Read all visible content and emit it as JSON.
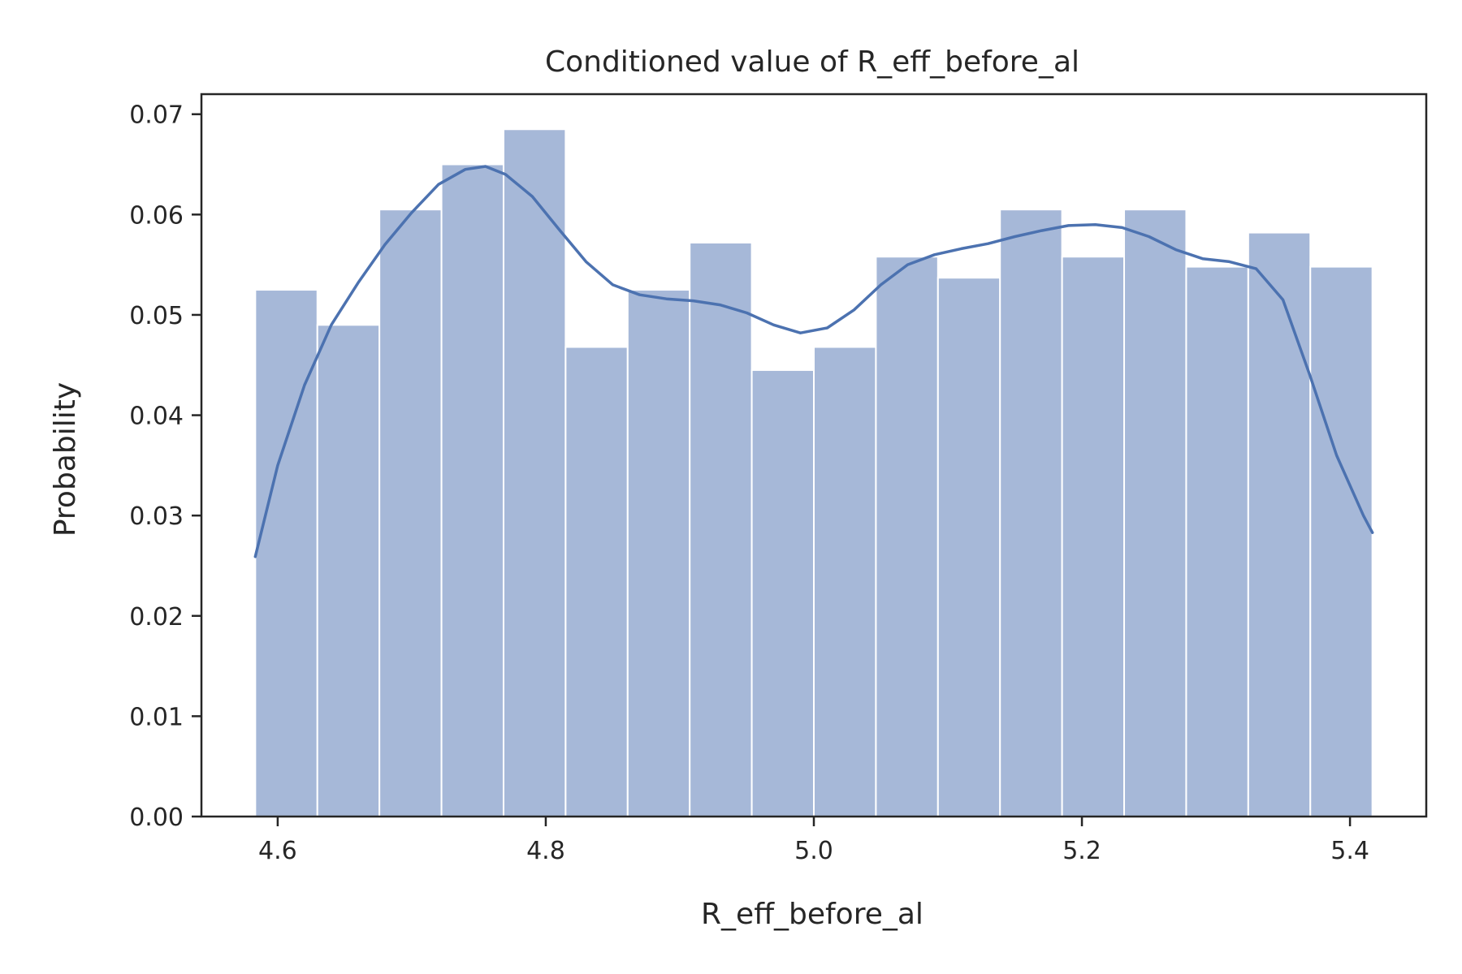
{
  "chart_data": {
    "type": "bar",
    "title": "Conditioned value of R_eff_before_al",
    "xlabel": "R_eff_before_al",
    "ylabel": "Probability",
    "bin_edges": [
      4.5833,
      4.6296,
      4.6759,
      4.7222,
      4.7685,
      4.8148,
      4.8611,
      4.9074,
      4.9537,
      5.0,
      5.0463,
      5.0926,
      5.1389,
      5.1852,
      5.2315,
      5.2778,
      5.3241,
      5.3704,
      5.4167
    ],
    "values": [
      0.0525,
      0.049,
      0.0605,
      0.065,
      0.0685,
      0.0468,
      0.0525,
      0.0572,
      0.0445,
      0.0468,
      0.0558,
      0.0537,
      0.0605,
      0.0558,
      0.0605,
      0.0548,
      0.0582,
      0.0548
    ],
    "kde": {
      "x": [
        4.5833,
        4.6,
        4.62,
        4.64,
        4.66,
        4.68,
        4.7,
        4.72,
        4.74,
        4.755,
        4.77,
        4.79,
        4.81,
        4.83,
        4.85,
        4.87,
        4.89,
        4.91,
        4.93,
        4.95,
        4.97,
        4.99,
        5.01,
        5.03,
        5.05,
        5.07,
        5.09,
        5.11,
        5.13,
        5.15,
        5.17,
        5.19,
        5.21,
        5.23,
        5.25,
        5.27,
        5.29,
        5.31,
        5.33,
        5.35,
        5.37,
        5.39,
        5.41,
        5.4167
      ],
      "y": [
        0.0259,
        0.035,
        0.043,
        0.049,
        0.0532,
        0.057,
        0.0602,
        0.063,
        0.0645,
        0.0648,
        0.064,
        0.0618,
        0.0585,
        0.0553,
        0.053,
        0.052,
        0.0516,
        0.0514,
        0.051,
        0.0502,
        0.049,
        0.0482,
        0.0487,
        0.0505,
        0.053,
        0.055,
        0.056,
        0.0566,
        0.0571,
        0.0578,
        0.0584,
        0.0589,
        0.059,
        0.0587,
        0.0578,
        0.0565,
        0.0556,
        0.0553,
        0.0546,
        0.0515,
        0.044,
        0.036,
        0.03,
        0.0283
      ]
    },
    "xlim": [
      4.5431,
      5.4569
    ],
    "ylim": [
      0,
      0.072
    ],
    "xticks": [
      4.6,
      4.8,
      5.0,
      5.2,
      5.4
    ],
    "xtick_labels": [
      "4.6",
      "4.8",
      "5.0",
      "5.2",
      "5.4"
    ],
    "yticks": [
      0,
      0.01,
      0.02,
      0.03,
      0.04,
      0.05,
      0.06,
      0.07
    ],
    "ytick_labels": [
      "0.00",
      "0.01",
      "0.02",
      "0.03",
      "0.04",
      "0.05",
      "0.06",
      "0.07"
    ],
    "grid": false,
    "colors": {
      "bar": "#a6b8d8",
      "kde": "#4c72b0",
      "axes": "#262626"
    }
  }
}
